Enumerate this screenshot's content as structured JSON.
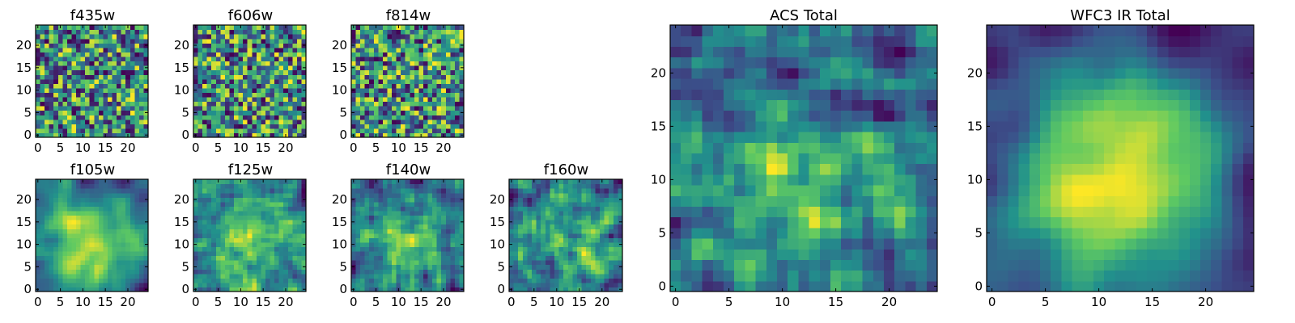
{
  "colormap": "viridis",
  "colormap_stops": [
    "#440154",
    "#3b528b",
    "#21918c",
    "#5ec962",
    "#fde725"
  ],
  "chart_data": [
    {
      "type": "heatmap",
      "title": "f435w",
      "grid_size": 25,
      "xlim": [
        -0.5,
        24.5
      ],
      "ylim": [
        -0.5,
        24.5
      ],
      "xticks": [
        0,
        5,
        10,
        15,
        20
      ],
      "yticks": [
        0,
        5,
        10,
        15,
        20
      ],
      "seed": 11,
      "smoothing": 0,
      "center_bias": 0
    },
    {
      "type": "heatmap",
      "title": "f606w",
      "grid_size": 25,
      "xlim": [
        -0.5,
        24.5
      ],
      "ylim": [
        -0.5,
        24.5
      ],
      "xticks": [
        0,
        5,
        10,
        15,
        20
      ],
      "yticks": [
        0,
        5,
        10,
        15,
        20
      ],
      "seed": 23,
      "smoothing": 0,
      "center_bias": 0
    },
    {
      "type": "heatmap",
      "title": "f814w",
      "grid_size": 25,
      "xlim": [
        -0.5,
        24.5
      ],
      "ylim": [
        -0.5,
        24.5
      ],
      "xticks": [
        0,
        5,
        10,
        15,
        20
      ],
      "yticks": [
        0,
        5,
        10,
        15,
        20
      ],
      "seed": 37,
      "smoothing": 0,
      "center_bias": 0
    },
    {
      "type": "heatmap",
      "title": "f105w",
      "grid_size": 25,
      "xlim": [
        -0.5,
        24.5
      ],
      "ylim": [
        -0.5,
        24.5
      ],
      "xticks": [
        0,
        5,
        10,
        15,
        20
      ],
      "yticks": [
        0,
        5,
        10,
        15,
        20
      ],
      "seed": 41,
      "smoothing": 2,
      "center_bias": 0.5
    },
    {
      "type": "heatmap",
      "title": "f125w",
      "grid_size": 25,
      "xlim": [
        -0.5,
        24.5
      ],
      "ylim": [
        -0.5,
        24.5
      ],
      "xticks": [
        0,
        5,
        10,
        15,
        20
      ],
      "yticks": [
        0,
        5,
        10,
        15,
        20
      ],
      "seed": 53,
      "smoothing": 1,
      "center_bias": 0.3
    },
    {
      "type": "heatmap",
      "title": "f140w",
      "grid_size": 25,
      "xlim": [
        -0.5,
        24.5
      ],
      "ylim": [
        -0.5,
        24.5
      ],
      "xticks": [
        0,
        5,
        10,
        15,
        20
      ],
      "yticks": [
        0,
        5,
        10,
        15,
        20
      ],
      "seed": 67,
      "smoothing": 1,
      "center_bias": 0.3
    },
    {
      "type": "heatmap",
      "title": "f160w",
      "grid_size": 25,
      "xlim": [
        -0.5,
        24.5
      ],
      "ylim": [
        -0.5,
        24.5
      ],
      "xticks": [
        0,
        5,
        10,
        15,
        20
      ],
      "yticks": [
        0,
        5,
        10,
        15,
        20
      ],
      "seed": 79,
      "smoothing": 1,
      "center_bias": 0.2
    },
    {
      "type": "heatmap",
      "title": "ACS Total",
      "grid_size": 25,
      "xlim": [
        -0.5,
        24.5
      ],
      "ylim": [
        -0.5,
        24.5
      ],
      "xticks": [
        0,
        5,
        10,
        15,
        20
      ],
      "yticks": [
        0,
        5,
        10,
        15,
        20
      ],
      "seed": 97,
      "smoothing": 1,
      "center_bias": 0.3
    },
    {
      "type": "heatmap",
      "title": "WFC3 IR Total",
      "grid_size": 25,
      "xlim": [
        -0.5,
        24.5
      ],
      "ylim": [
        -0.5,
        24.5
      ],
      "xticks": [
        0,
        5,
        10,
        15,
        20
      ],
      "yticks": [
        0,
        5,
        10,
        15,
        20
      ],
      "seed": 113,
      "smoothing": 3,
      "center_bias": 0.8
    }
  ]
}
